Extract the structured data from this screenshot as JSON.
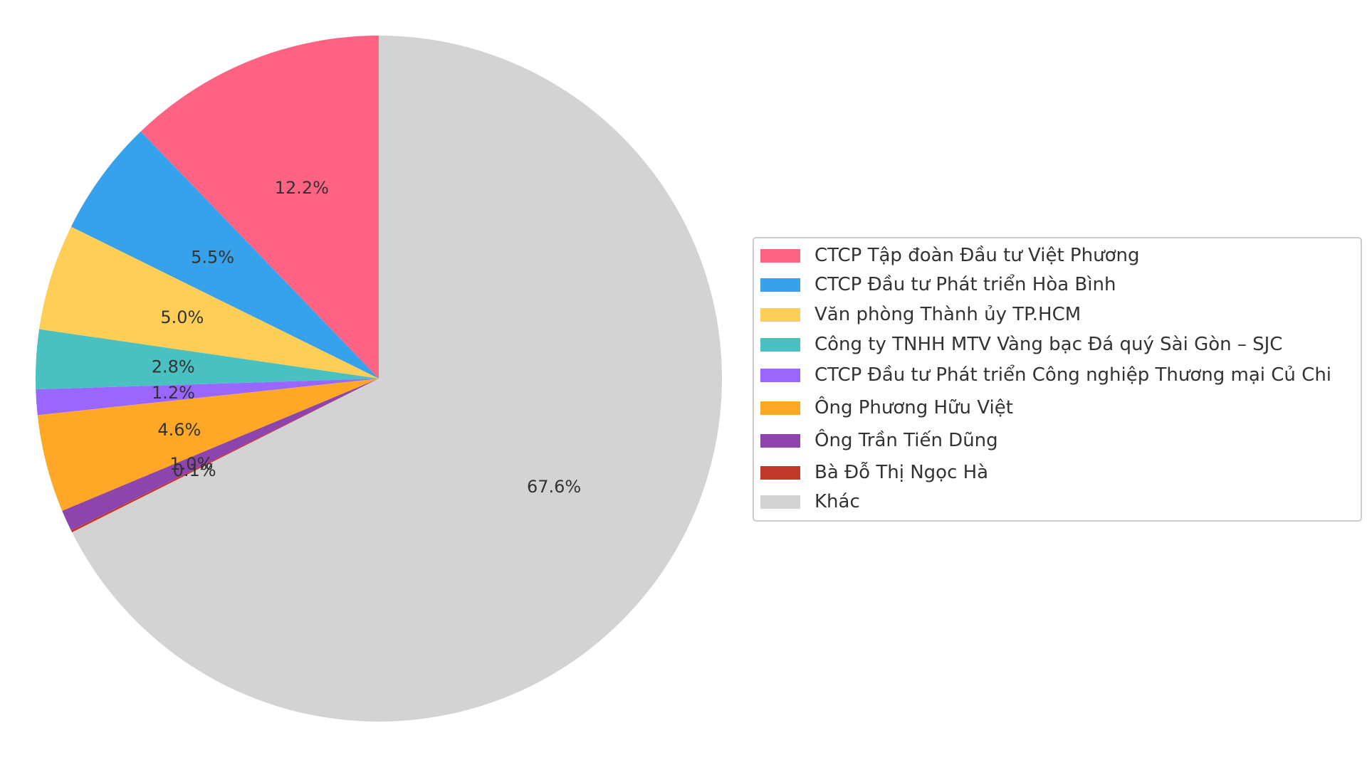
{
  "chart_data": {
    "type": "pie",
    "title": "",
    "start_angle_deg": 90,
    "direction": "counterclockwise",
    "legend_placement": "right",
    "slices": [
      {
        "label": "CTCP Tập đoàn Đầu tư Việt Phương",
        "value": 12.2,
        "value_label": "12.2%",
        "color": "#ff6384"
      },
      {
        "label": "CTCP Đầu tư Phát triển Hòa Bình",
        "value": 5.5,
        "value_label": "5.5%",
        "color": "#36a2eb"
      },
      {
        "label": "Văn phòng Thành ủy TP.HCM",
        "value": 5.0,
        "value_label": "5.0%",
        "color": "#ffce56"
      },
      {
        "label": "Công ty TNHH MTV Vàng bạc Đá quý Sài Gòn – SJC",
        "value": 2.8,
        "value_label": "2.8%",
        "color": "#4bc0c0"
      },
      {
        "label": "CTCP Đầu tư Phát triển Công nghiệp Thương mại Củ Chi",
        "value": 1.2,
        "value_label": "1.2%",
        "color": "#9966ff"
      },
      {
        "label": "Ông Phương Hữu Việt",
        "value": 4.6,
        "value_label": "4.6%",
        "color": "#ffa726"
      },
      {
        "label": "Ông Trần Tiến Dũng",
        "value": 1.0,
        "value_label": "1.0%",
        "color": "#8e44ad"
      },
      {
        "label": "Bà Đỗ Thị Ngọc Hà",
        "value": 0.1,
        "value_label": "0.1%",
        "color": "#c0392b"
      },
      {
        "label": "Khác",
        "value": 67.6,
        "value_label": "67.6%",
        "color": "#d3d3d3"
      }
    ]
  }
}
